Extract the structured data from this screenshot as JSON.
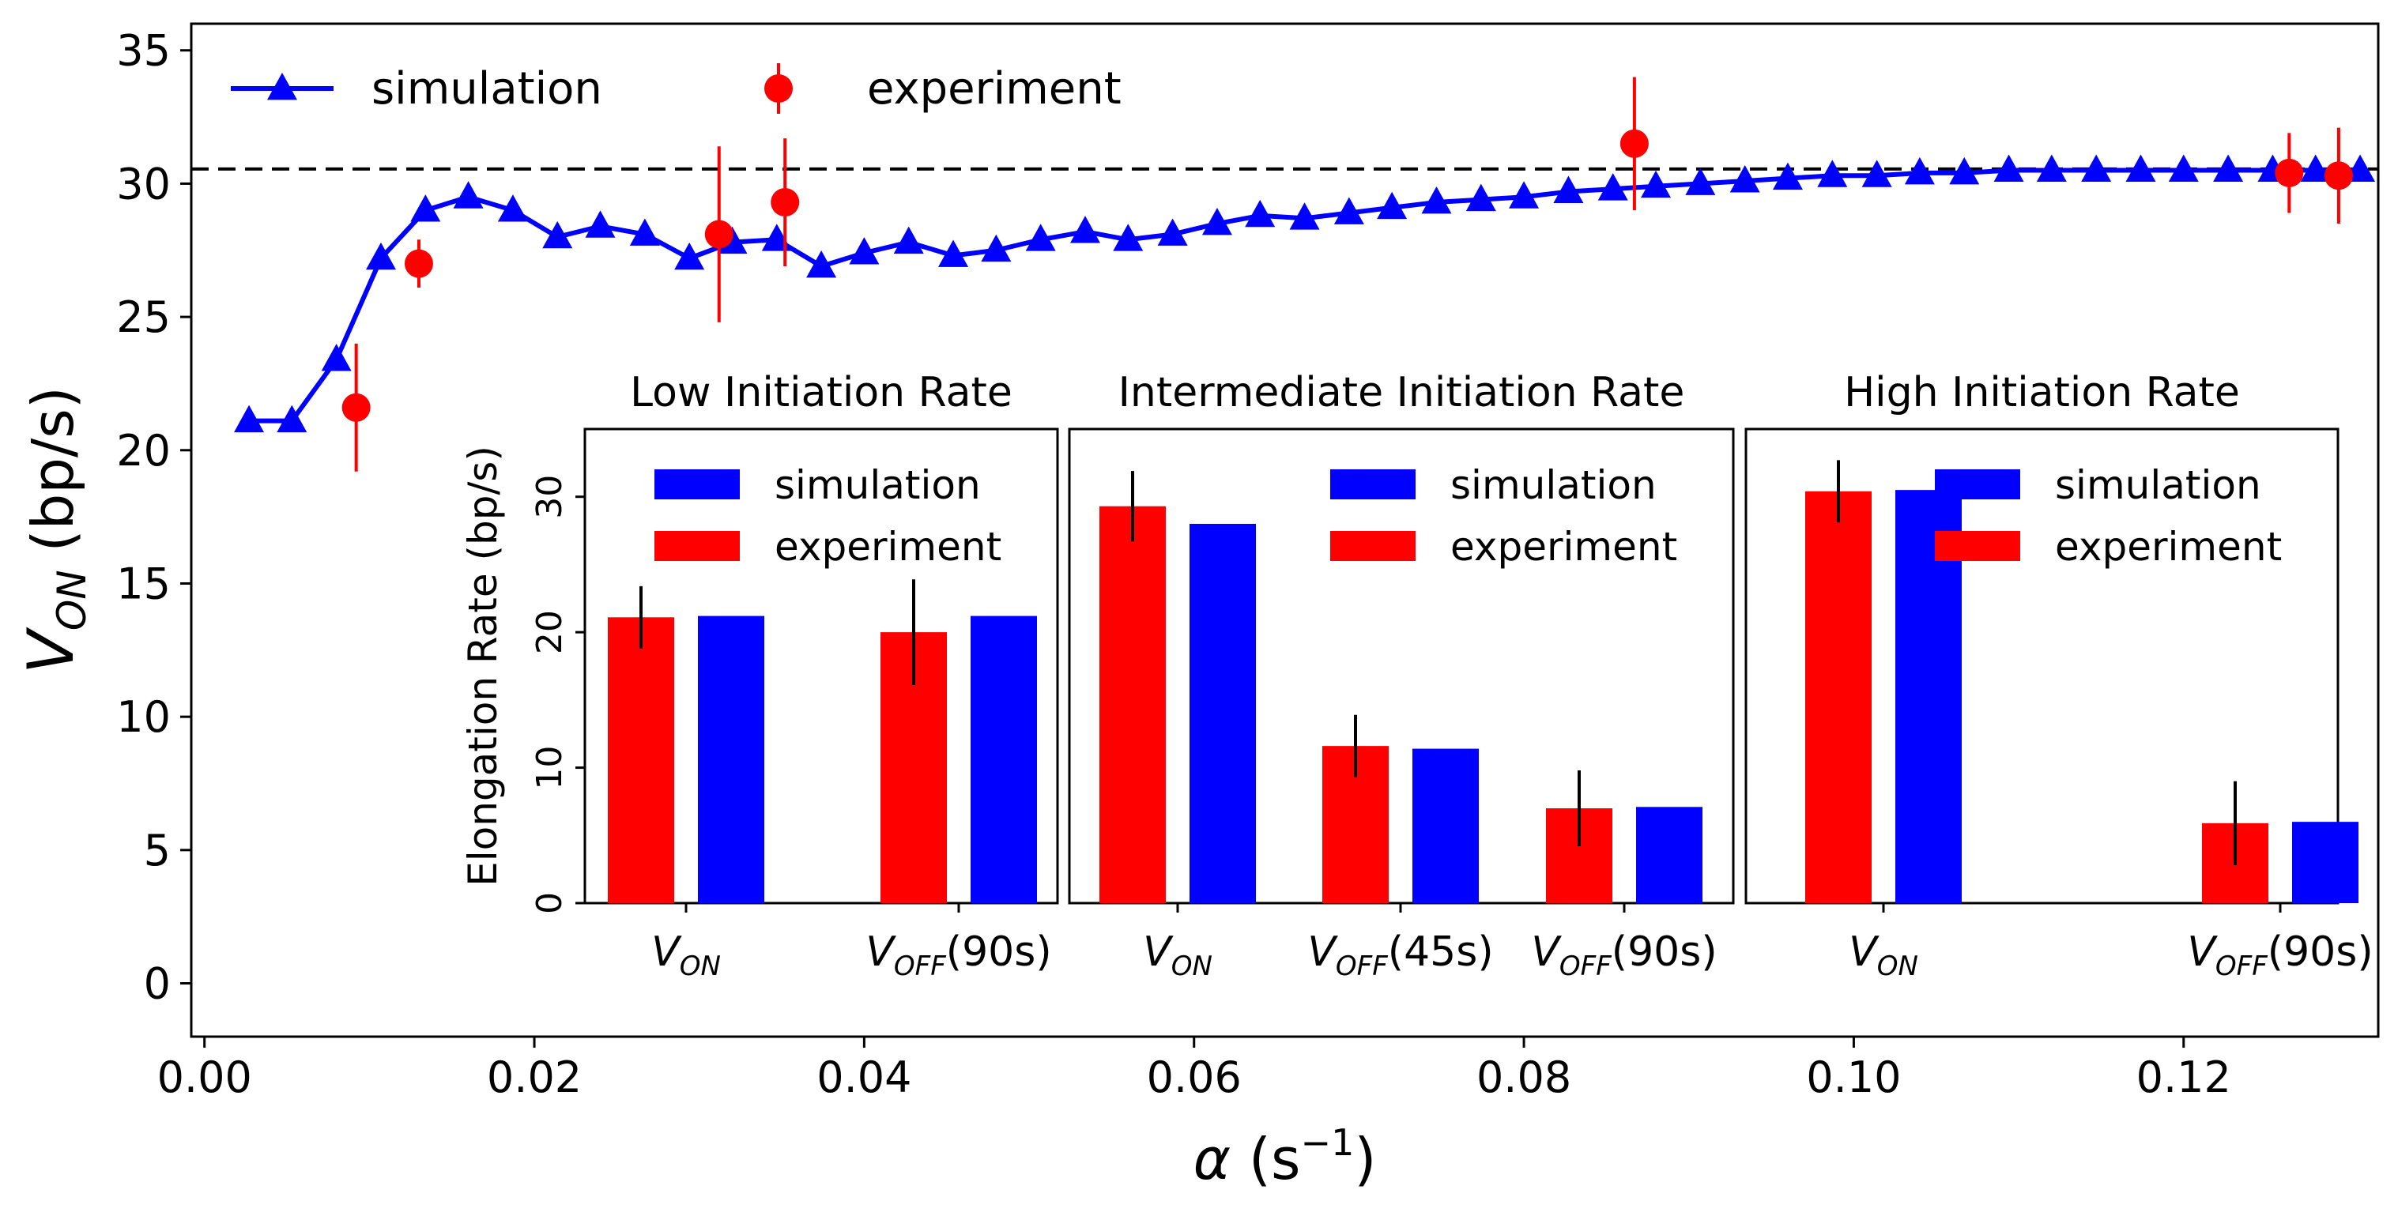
{
  "chart_data": {
    "type": "line",
    "xlabel": "α (s⁻¹)",
    "xlabel_parts": {
      "symbol": "α",
      "open": " (s",
      "sup": "−1",
      "close": ")"
    },
    "ylabel": "V_ON (bp/s)",
    "ylabel_parts": {
      "symbol": "V",
      "sub": "ON",
      "rest": " (bp/s)"
    },
    "xlim": [
      -0.0008,
      0.1318
    ],
    "ylim": [
      -2,
      36
    ],
    "x_ticks": [
      0.0,
      0.02,
      0.04,
      0.06,
      0.08,
      0.1,
      0.12
    ],
    "x_tick_labels": [
      "0.00",
      "0.02",
      "0.04",
      "0.06",
      "0.08",
      "0.10",
      "0.12"
    ],
    "y_ticks": [
      0,
      5,
      10,
      15,
      20,
      25,
      30,
      35
    ],
    "y_tick_labels": [
      "0",
      "5",
      "10",
      "15",
      "20",
      "25",
      "30",
      "35"
    ],
    "grid": false,
    "legend": {
      "placement": "top-left",
      "entries": [
        "simulation",
        "experiment"
      ]
    },
    "reference_line": {
      "y": 30.55,
      "style": "dashed",
      "color": "#000000"
    },
    "series": [
      {
        "name": "simulation",
        "color": "#0000ff",
        "marker": "triangle",
        "x": [
          0.0027,
          0.0053,
          0.008,
          0.0107,
          0.0134,
          0.016,
          0.0187,
          0.0214,
          0.024,
          0.0267,
          0.0294,
          0.032,
          0.0347,
          0.0374,
          0.04,
          0.0427,
          0.0454,
          0.048,
          0.0507,
          0.0534,
          0.056,
          0.0587,
          0.0614,
          0.064,
          0.0667,
          0.0694,
          0.072,
          0.0747,
          0.0774,
          0.08,
          0.0827,
          0.0854,
          0.088,
          0.0907,
          0.0934,
          0.096,
          0.0987,
          0.1014,
          0.104,
          0.1067,
          0.1094,
          0.112,
          0.1147,
          0.1174,
          0.12,
          0.1227,
          0.1254,
          0.128,
          0.1307
        ],
        "y": [
          21.1,
          21.1,
          23.4,
          27.2,
          29.0,
          29.5,
          29.0,
          28.0,
          28.4,
          28.1,
          27.2,
          27.8,
          27.9,
          26.9,
          27.4,
          27.8,
          27.3,
          27.5,
          27.9,
          28.2,
          27.9,
          28.1,
          28.5,
          28.8,
          28.7,
          28.9,
          29.1,
          29.3,
          29.4,
          29.5,
          29.7,
          29.8,
          29.9,
          30.0,
          30.1,
          30.2,
          30.3,
          30.3,
          30.4,
          30.4,
          30.5,
          30.5,
          30.5,
          30.5,
          30.5,
          30.5,
          30.5,
          30.5,
          30.5
        ]
      },
      {
        "name": "experiment",
        "color": "#ff0000",
        "marker": "circle",
        "x": [
          0.0092,
          0.013,
          0.0312,
          0.0352,
          0.0867,
          0.1264,
          0.1294
        ],
        "y": [
          21.6,
          27.0,
          28.1,
          29.3,
          31.5,
          30.4,
          30.3
        ],
        "err": [
          2.4,
          0.9,
          3.3,
          2.4,
          2.5,
          1.5,
          1.8
        ]
      }
    ],
    "insets": [
      {
        "type": "bar",
        "title": "Low Initiation Rate",
        "ylabel": "Elongation Rate (bp/s)",
        "ylim": [
          0,
          35
        ],
        "y_ticks": [
          0,
          10,
          20,
          30
        ],
        "y_tick_labels": [
          "0",
          "10",
          "20",
          "30"
        ],
        "categories": [
          {
            "main": "V",
            "sub": "ON",
            "suffix": ""
          },
          {
            "main": "V",
            "sub": "OFF",
            "suffix": "(90s)"
          }
        ],
        "series": [
          {
            "name": "experiment",
            "color": "#ff0000",
            "values": [
              21.1,
              20.0
            ],
            "err": [
              2.3,
              3.9
            ]
          },
          {
            "name": "simulation",
            "color": "#0000ff",
            "values": [
              21.2,
              21.2
            ]
          }
        ],
        "legend": {
          "placement": "top-right"
        }
      },
      {
        "type": "bar",
        "title": "Intermediate Initiation Rate",
        "ylim": [
          0,
          35
        ],
        "categories": [
          {
            "main": "V",
            "sub": "ON",
            "suffix": ""
          },
          {
            "main": "V",
            "sub": "OFF",
            "suffix": "(45s)"
          },
          {
            "main": "V",
            "sub": "OFF",
            "suffix": "(90s)"
          }
        ],
        "series": [
          {
            "name": "experiment",
            "color": "#ff0000",
            "values": [
              29.3,
              11.6,
              7.0
            ],
            "err": [
              2.6,
              2.3,
              2.8
            ]
          },
          {
            "name": "simulation",
            "color": "#0000ff",
            "values": [
              28.0,
              11.4,
              7.1
            ]
          }
        ],
        "legend": {
          "placement": "top-right"
        }
      },
      {
        "type": "bar",
        "title": "High Initiation Rate",
        "ylim": [
          0,
          35
        ],
        "categories": [
          {
            "main": "V",
            "sub": "ON",
            "suffix": ""
          },
          {
            "main": "V",
            "sub": "OFF",
            "suffix": "(90s)"
          }
        ],
        "series": [
          {
            "name": "experiment",
            "color": "#ff0000",
            "values": [
              30.4,
              5.9
            ],
            "err": [
              2.3,
              3.1
            ]
          },
          {
            "name": "simulation",
            "color": "#0000ff",
            "values": [
              30.5,
              6.0
            ]
          }
        ],
        "legend": {
          "placement": "top-right"
        }
      }
    ]
  }
}
